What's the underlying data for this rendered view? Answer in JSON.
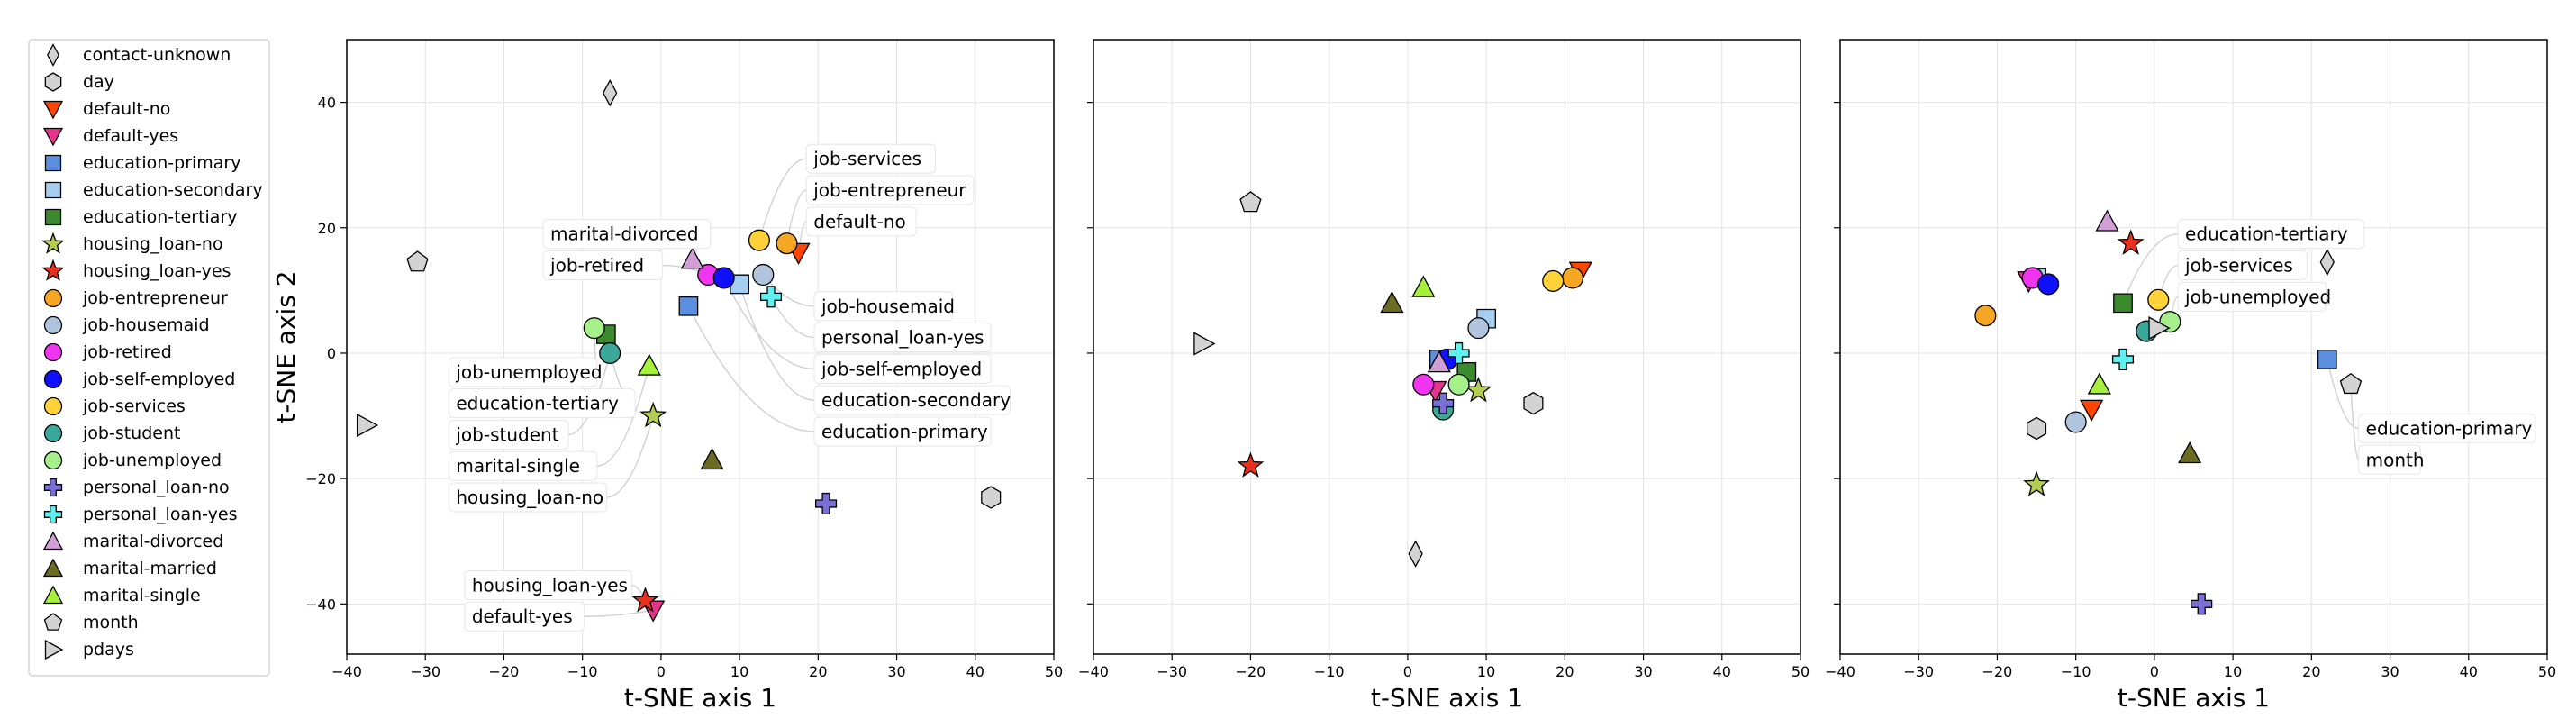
{
  "chart_data": {
    "type": "scatter",
    "legend": {
      "placement": "left",
      "entries": [
        {
          "label": "contact-unknown",
          "marker": "thin-diamond",
          "color": "#d3d3d3"
        },
        {
          "label": "day",
          "marker": "hexagon",
          "color": "#d3d3d3"
        },
        {
          "label": "default-no",
          "marker": "triangle-down",
          "color": "#ff4500"
        },
        {
          "label": "default-yes",
          "marker": "triangle-down",
          "color": "#e8338c"
        },
        {
          "label": "education-primary",
          "marker": "square",
          "color": "#5b8fe0"
        },
        {
          "label": "education-secondary",
          "marker": "square",
          "color": "#a6cef0"
        },
        {
          "label": "education-tertiary",
          "marker": "square",
          "color": "#3c8a2e"
        },
        {
          "label": "housing_loan-no",
          "marker": "star",
          "color": "#b5cc52"
        },
        {
          "label": "housing_loan-yes",
          "marker": "star",
          "color": "#e8321f"
        },
        {
          "label": "job-entrepreneur",
          "marker": "circle",
          "color": "#f5a623"
        },
        {
          "label": "job-housemaid",
          "marker": "circle",
          "color": "#b0c4de"
        },
        {
          "label": "job-retired",
          "marker": "circle",
          "color": "#f035f0"
        },
        {
          "label": "job-self-employed",
          "marker": "circle",
          "color": "#1010ff"
        },
        {
          "label": "job-services",
          "marker": "circle",
          "color": "#ffd23a"
        },
        {
          "label": "job-student",
          "marker": "circle",
          "color": "#3aa89a"
        },
        {
          "label": "job-unemployed",
          "marker": "circle",
          "color": "#a6f08c"
        },
        {
          "label": "personal_loan-no",
          "marker": "plus",
          "color": "#7a6fd6"
        },
        {
          "label": "personal_loan-yes",
          "marker": "plus",
          "color": "#5ff0f0"
        },
        {
          "label": "marital-divorced",
          "marker": "triangle-up",
          "color": "#d19fd6"
        },
        {
          "label": "marital-married",
          "marker": "triangle-up",
          "color": "#6b6b23"
        },
        {
          "label": "marital-single",
          "marker": "triangle-up",
          "color": "#a6f03c"
        },
        {
          "label": "month",
          "marker": "pentagon",
          "color": "#d3d3d3"
        },
        {
          "label": "pdays",
          "marker": "triangle-right",
          "color": "#d3d3d3"
        }
      ]
    },
    "subplots": [
      {
        "xlabel": "t-SNE axis 1",
        "ylabel": "t-SNE axis 2",
        "xlim": [
          -40,
          50
        ],
        "ylim": [
          -48,
          50
        ],
        "xticks": [
          -40,
          -30,
          -20,
          -10,
          0,
          10,
          20,
          30,
          40,
          50
        ],
        "yticks": [
          -40,
          -20,
          0,
          20,
          40
        ],
        "grid": true,
        "points": [
          {
            "label": "contact-unknown",
            "x": -6.5,
            "y": 41.5
          },
          {
            "label": "day",
            "x": 42,
            "y": -23
          },
          {
            "label": "default-no",
            "x": 17.5,
            "y": 16
          },
          {
            "label": "default-yes",
            "x": -1,
            "y": -41
          },
          {
            "label": "education-primary",
            "x": 3.5,
            "y": 7.5
          },
          {
            "label": "education-secondary",
            "x": 10,
            "y": 11
          },
          {
            "label": "education-tertiary",
            "x": -7,
            "y": 3
          },
          {
            "label": "housing_loan-no",
            "x": -1,
            "y": -10
          },
          {
            "label": "housing_loan-yes",
            "x": -2,
            "y": -39.5
          },
          {
            "label": "job-entrepreneur",
            "x": 16,
            "y": 17.5
          },
          {
            "label": "job-housemaid",
            "x": 13,
            "y": 12.5
          },
          {
            "label": "job-retired",
            "x": 6,
            "y": 12.5
          },
          {
            "label": "job-self-employed",
            "x": 8,
            "y": 12
          },
          {
            "label": "job-services",
            "x": 12.5,
            "y": 18
          },
          {
            "label": "job-student",
            "x": -6.5,
            "y": 0
          },
          {
            "label": "job-unemployed",
            "x": -8.5,
            "y": 4
          },
          {
            "label": "personal_loan-no",
            "x": 21,
            "y": -24
          },
          {
            "label": "personal_loan-yes",
            "x": 14,
            "y": 9
          },
          {
            "label": "marital-divorced",
            "x": 4,
            "y": 15
          },
          {
            "label": "marital-married",
            "x": 6.5,
            "y": -17
          },
          {
            "label": "marital-single",
            "x": -1.5,
            "y": -2
          },
          {
            "label": "month",
            "x": -31,
            "y": 14.5
          },
          {
            "label": "pdays",
            "x": -37.5,
            "y": -11.5
          }
        ],
        "annotations": [
          {
            "text": "job-services",
            "target": "job-services",
            "tx": 18.5,
            "ty": 31
          },
          {
            "text": "job-entrepreneur",
            "target": "job-entrepreneur",
            "tx": 18.5,
            "ty": 26
          },
          {
            "text": "default-no",
            "target": "default-no",
            "tx": 18.5,
            "ty": 21
          },
          {
            "text": "marital-divorced",
            "target": "marital-divorced",
            "tx": -15,
            "ty": 19
          },
          {
            "text": "job-retired",
            "target": "job-retired",
            "tx": -15,
            "ty": 14
          },
          {
            "text": "job-housemaid",
            "target": "job-housemaid",
            "tx": 19.5,
            "ty": 7.5
          },
          {
            "text": "personal_loan-yes",
            "target": "personal_loan-yes",
            "tx": 19.5,
            "ty": 2.5
          },
          {
            "text": "job-self-employed",
            "target": "job-self-employed",
            "tx": 19.5,
            "ty": -2.5
          },
          {
            "text": "education-secondary",
            "target": "education-secondary",
            "tx": 19.5,
            "ty": -7.5
          },
          {
            "text": "education-primary",
            "target": "education-primary",
            "tx": 19.5,
            "ty": -12.5
          },
          {
            "text": "job-unemployed",
            "target": "job-unemployed",
            "tx": -27,
            "ty": -3
          },
          {
            "text": "education-tertiary",
            "target": "education-tertiary",
            "tx": -27,
            "ty": -8
          },
          {
            "text": "job-student",
            "target": "job-student",
            "tx": -27,
            "ty": -13
          },
          {
            "text": "marital-single",
            "target": "marital-single",
            "tx": -27,
            "ty": -18
          },
          {
            "text": "housing_loan-no",
            "target": "housing_loan-no",
            "tx": -27,
            "ty": -23
          },
          {
            "text": "housing_loan-yes",
            "target": "housing_loan-yes",
            "tx": -25,
            "ty": -37
          },
          {
            "text": "default-yes",
            "target": "default-yes",
            "tx": -25,
            "ty": -42
          }
        ]
      },
      {
        "xlabel": "t-SNE axis 1",
        "ylabel": "",
        "xlim": [
          -40,
          50
        ],
        "ylim": [
          -48,
          50
        ],
        "xticks": [
          -40,
          -30,
          -20,
          -10,
          0,
          10,
          20,
          30,
          40,
          50
        ],
        "yticks": [
          -40,
          -20,
          0,
          20,
          40
        ],
        "grid": true,
        "points": [
          {
            "label": "contact-unknown",
            "x": 1,
            "y": -32
          },
          {
            "label": "day",
            "x": 16,
            "y": -8
          },
          {
            "label": "default-no",
            "x": 22,
            "y": 13
          },
          {
            "label": "default-yes",
            "x": 3.5,
            "y": -6
          },
          {
            "label": "education-primary",
            "x": 4,
            "y": -1
          },
          {
            "label": "education-secondary",
            "x": 10,
            "y": 5.5
          },
          {
            "label": "education-tertiary",
            "x": 7.5,
            "y": -3
          },
          {
            "label": "housing_loan-no",
            "x": 9,
            "y": -6
          },
          {
            "label": "housing_loan-yes",
            "x": -20,
            "y": -18
          },
          {
            "label": "job-entrepreneur",
            "x": 21,
            "y": 12
          },
          {
            "label": "job-housemaid",
            "x": 9,
            "y": 4
          },
          {
            "label": "job-retired",
            "x": 2,
            "y": -5
          },
          {
            "label": "job-self-employed",
            "x": 5,
            "y": -1
          },
          {
            "label": "job-services",
            "x": 18.5,
            "y": 11.5
          },
          {
            "label": "job-student",
            "x": 4.5,
            "y": -9
          },
          {
            "label": "job-unemployed",
            "x": 6.5,
            "y": -5
          },
          {
            "label": "personal_loan-no",
            "x": 4.5,
            "y": -8
          },
          {
            "label": "personal_loan-yes",
            "x": 6.5,
            "y": 0
          },
          {
            "label": "marital-divorced",
            "x": 4,
            "y": -1.5
          },
          {
            "label": "marital-married",
            "x": -2,
            "y": 8
          },
          {
            "label": "marital-single",
            "x": 2,
            "y": 10.5
          },
          {
            "label": "month",
            "x": -20,
            "y": 24
          },
          {
            "label": "pdays",
            "x": -26,
            "y": 1.5
          }
        ],
        "annotations": []
      },
      {
        "xlabel": "t-SNE axis 1",
        "ylabel": "",
        "xlim": [
          -40,
          50
        ],
        "ylim": [
          -48,
          50
        ],
        "xticks": [
          -40,
          -30,
          -20,
          -10,
          0,
          10,
          20,
          30,
          40,
          50
        ],
        "yticks": [
          -40,
          -20,
          0,
          20,
          40
        ],
        "grid": true,
        "points": [
          {
            "label": "contact-unknown",
            "x": 22,
            "y": 14.5
          },
          {
            "label": "day",
            "x": -15,
            "y": -12
          },
          {
            "label": "default-no",
            "x": -8,
            "y": -9
          },
          {
            "label": "default-yes",
            "x": -16,
            "y": 11.5
          },
          {
            "label": "education-primary",
            "x": 22,
            "y": -1
          },
          {
            "label": "education-secondary",
            "x": -15,
            "y": 12
          },
          {
            "label": "education-tertiary",
            "x": -4,
            "y": 8
          },
          {
            "label": "housing_loan-no",
            "x": -15,
            "y": -21
          },
          {
            "label": "housing_loan-yes",
            "x": -3,
            "y": 17.5
          },
          {
            "label": "job-entrepreneur",
            "x": -21.5,
            "y": 6
          },
          {
            "label": "job-housemaid",
            "x": -10,
            "y": -11
          },
          {
            "label": "job-retired",
            "x": -15.5,
            "y": 12
          },
          {
            "label": "job-self-employed",
            "x": -13.5,
            "y": 11
          },
          {
            "label": "job-services",
            "x": 0.5,
            "y": 8.5
          },
          {
            "label": "job-student",
            "x": -1,
            "y": 3.5
          },
          {
            "label": "job-unemployed",
            "x": 2,
            "y": 5
          },
          {
            "label": "personal_loan-no",
            "x": 6,
            "y": -40
          },
          {
            "label": "personal_loan-yes",
            "x": -4,
            "y": -1
          },
          {
            "label": "marital-divorced",
            "x": -6,
            "y": 21
          },
          {
            "label": "marital-married",
            "x": 4.5,
            "y": -16
          },
          {
            "label": "marital-single",
            "x": -7,
            "y": -5
          },
          {
            "label": "month",
            "x": 25,
            "y": -5
          },
          {
            "label": "pdays",
            "x": 0.5,
            "y": 4
          }
        ],
        "annotations": [
          {
            "text": "education-tertiary",
            "target": "education-tertiary",
            "tx": 3,
            "ty": 19
          },
          {
            "text": "job-services",
            "target": "job-services",
            "tx": 3,
            "ty": 14
          },
          {
            "text": "job-unemployed",
            "target": "job-unemployed",
            "tx": 3,
            "ty": 9
          },
          {
            "text": "education-primary",
            "target": "education-primary",
            "tx": 26,
            "ty": -12
          },
          {
            "text": "month",
            "target": "month",
            "tx": 26,
            "ty": -17
          }
        ]
      }
    ]
  }
}
